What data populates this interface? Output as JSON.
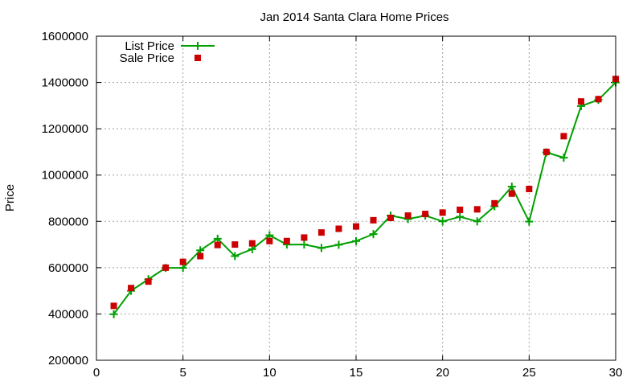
{
  "chart_data": {
    "type": "line",
    "title": "Jan 2014 Santa Clara Home Prices",
    "xlabel": "",
    "ylabel": "Price",
    "xlim": [
      0,
      30
    ],
    "ylim": [
      200000,
      1600000
    ],
    "xticks": [
      0,
      5,
      10,
      15,
      20,
      25,
      30
    ],
    "yticks": [
      200000,
      400000,
      600000,
      800000,
      1000000,
      1200000,
      1400000,
      1600000
    ],
    "grid": true,
    "legend_position": "top-left",
    "x": [
      1,
      2,
      3,
      4,
      5,
      6,
      7,
      8,
      9,
      10,
      11,
      12,
      13,
      14,
      15,
      16,
      17,
      18,
      19,
      20,
      21,
      22,
      23,
      24,
      25,
      26,
      27,
      28,
      29,
      30
    ],
    "series": [
      {
        "name": "List Price",
        "style": "line-plus",
        "color": "#00a000",
        "values": [
          399000,
          500000,
          550000,
          599000,
          599000,
          675000,
          725000,
          650000,
          680000,
          740000,
          700000,
          700000,
          685000,
          699000,
          715000,
          745000,
          825000,
          810000,
          825000,
          800000,
          820000,
          800000,
          865000,
          950000,
          799000,
          1098000,
          1075000,
          1298000,
          1325000,
          1400000
        ]
      },
      {
        "name": "Sale Price",
        "style": "square-marker",
        "color": "#cc0000",
        "values": [
          435000,
          512000,
          540000,
          600000,
          625000,
          650000,
          698000,
          700000,
          705000,
          715000,
          715000,
          730000,
          752000,
          768000,
          778000,
          805000,
          815000,
          825000,
          832000,
          838000,
          850000,
          852000,
          878000,
          920000,
          940000,
          1100000,
          1168000,
          1318000,
          1328000,
          1415000
        ]
      }
    ]
  }
}
